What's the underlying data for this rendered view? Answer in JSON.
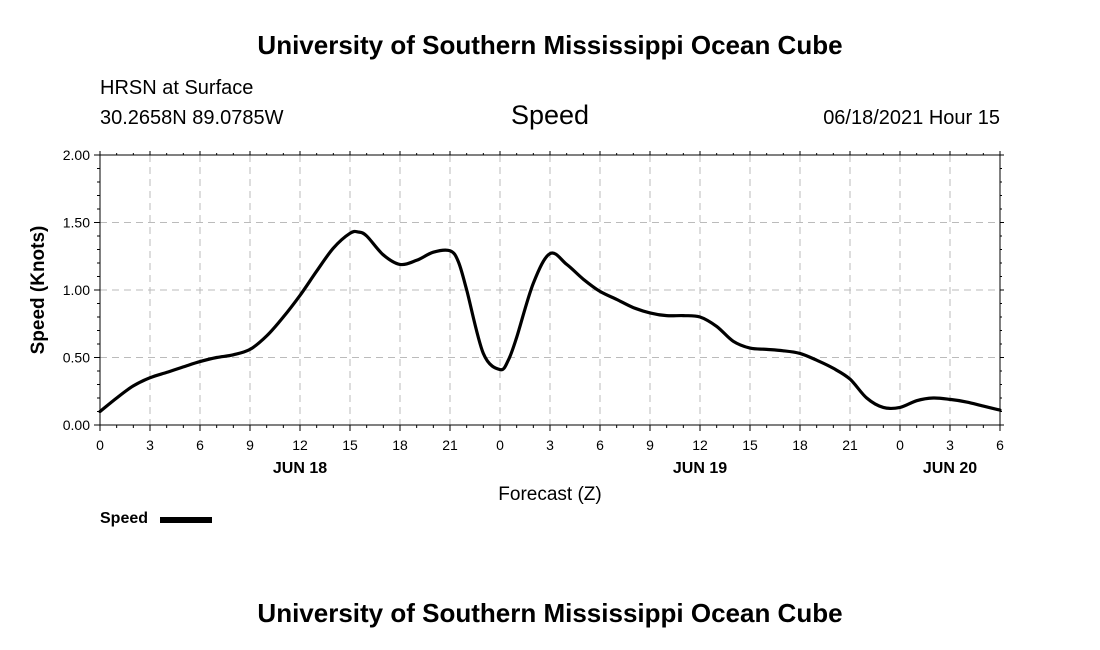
{
  "header": {
    "title": "University of Southern Mississippi Ocean Cube",
    "station": "HRSN at Surface",
    "coords": "30.2658N  89.0785W",
    "variable": "Speed",
    "valid_time": "06/18/2021 Hour 15"
  },
  "footer": {
    "title": "University of Southern Mississippi Ocean Cube"
  },
  "legend": {
    "label": "Speed",
    "color": "#000000"
  },
  "chart_data": {
    "type": "line",
    "title": "Speed",
    "xlabel": "Forecast (Z)",
    "ylabel": "Speed (Knots)",
    "xlim": [
      0,
      54
    ],
    "ylim": [
      0,
      2
    ],
    "grid": true,
    "legend_position": "bottom-left",
    "x_tick_labels": [
      "0",
      "3",
      "6",
      "9",
      "12",
      "15",
      "18",
      "21",
      "0",
      "3",
      "6",
      "9",
      "12",
      "15",
      "18",
      "21",
      "0",
      "3",
      "6"
    ],
    "y_tick_labels": [
      "0.00",
      "0.50",
      "1.00",
      "1.50",
      "2.00"
    ],
    "date_labels": [
      {
        "text": "JUN 18",
        "at": 12
      },
      {
        "text": "JUN 19",
        "at": 36
      },
      {
        "text": "JUN 20",
        "at": 51
      }
    ],
    "series": [
      {
        "name": "Speed",
        "color": "#000000",
        "x": [
          0,
          1,
          2,
          3,
          4,
          5,
          6,
          7,
          8,
          9,
          10,
          11,
          12,
          13,
          14,
          15,
          15.5,
          16,
          17,
          18,
          19,
          20,
          21,
          21.5,
          22,
          23,
          24,
          24.5,
          25,
          26,
          27,
          28,
          29,
          30,
          31,
          32,
          33,
          34,
          35,
          36,
          37,
          38,
          39,
          40,
          41,
          42,
          43,
          44,
          45,
          46,
          47,
          48,
          49,
          50,
          51,
          52,
          53,
          54
        ],
        "y": [
          0.1,
          0.2,
          0.29,
          0.35,
          0.39,
          0.43,
          0.47,
          0.5,
          0.52,
          0.56,
          0.66,
          0.8,
          0.96,
          1.14,
          1.31,
          1.42,
          1.43,
          1.4,
          1.26,
          1.19,
          1.22,
          1.28,
          1.29,
          1.21,
          1.0,
          0.53,
          0.41,
          0.48,
          0.65,
          1.05,
          1.27,
          1.19,
          1.08,
          0.99,
          0.93,
          0.87,
          0.83,
          0.81,
          0.81,
          0.8,
          0.73,
          0.62,
          0.57,
          0.56,
          0.55,
          0.53,
          0.48,
          0.42,
          0.34,
          0.2,
          0.13,
          0.13,
          0.18,
          0.2,
          0.19,
          0.17,
          0.14,
          0.11
        ]
      }
    ]
  }
}
